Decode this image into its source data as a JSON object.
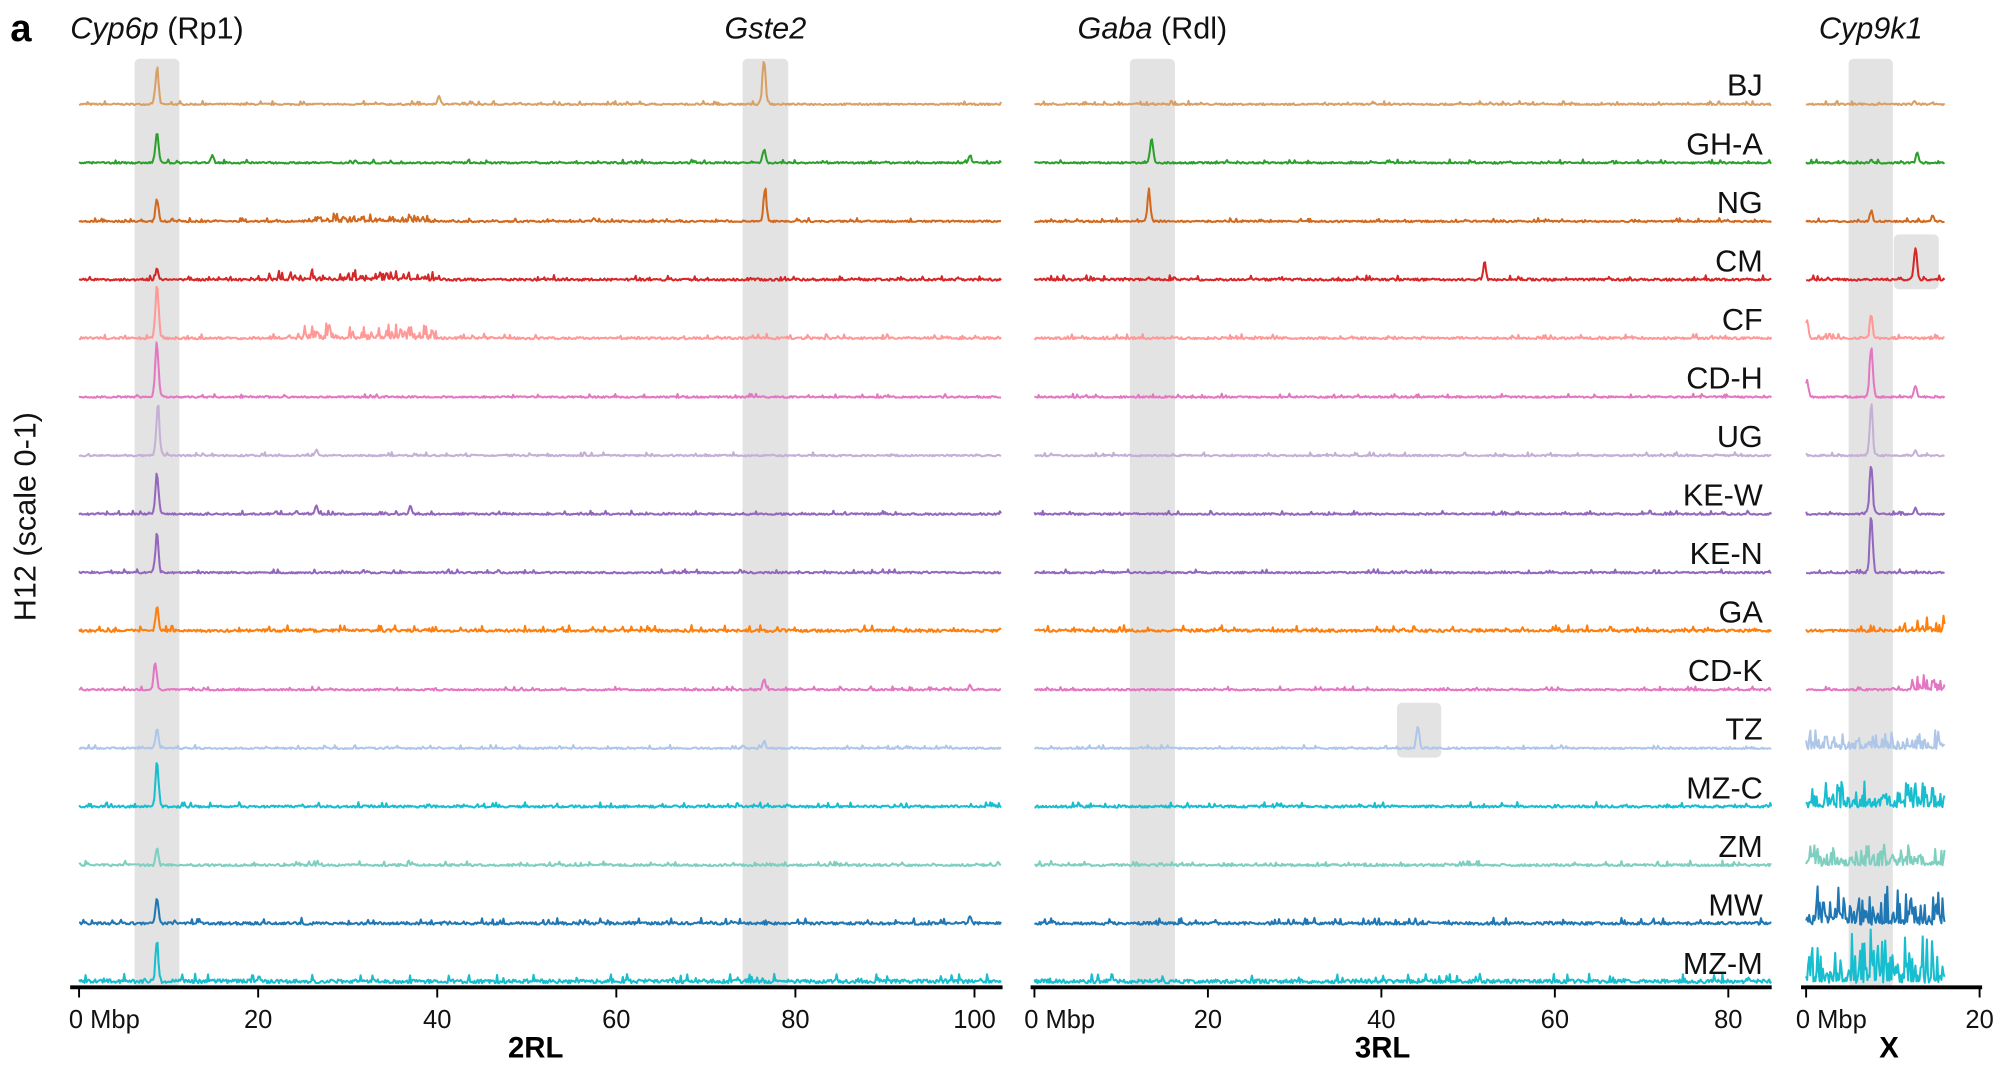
{
  "chart_data": {
    "type": "line",
    "panel_letter": "a",
    "ylabel": "H12 (scale 0-1)",
    "ylim": [
      0,
      1
    ],
    "chromosomes": [
      {
        "name": "2RL",
        "xlim": [
          0,
          103
        ],
        "ticks": [
          0,
          20,
          40,
          60,
          80,
          100
        ],
        "tick_labels": [
          "0 Mbp",
          "20",
          "40",
          "60",
          "80",
          "100"
        ]
      },
      {
        "name": "3RL",
        "xlim": [
          0,
          85
        ],
        "ticks": [
          0,
          20,
          40,
          60,
          80
        ],
        "tick_labels": [
          "0 Mbp",
          "20",
          "40",
          "60",
          "80"
        ]
      },
      {
        "name": "X",
        "xlim": [
          0,
          16
        ],
        "ticks": [
          0,
          20
        ],
        "tick_labels": [
          "0 Mbp",
          "20"
        ]
      }
    ],
    "loci": [
      {
        "chrom": "2RL",
        "start": 6.2,
        "end": 11.2,
        "label_italic": "Cyp6p",
        "label_extra": " (Rp1)"
      },
      {
        "chrom": "2RL",
        "start": 74.1,
        "end": 79.2,
        "label_italic": "Gste2",
        "label_extra": ""
      },
      {
        "chrom": "3RL",
        "start": 11.0,
        "end": 16.2,
        "label_italic": "Gaba",
        "label_extra": " (Rdl)"
      },
      {
        "chrom": "X",
        "start": 4.9,
        "end": 10.0,
        "label_italic": "Cyp9k1",
        "label_extra": ""
      }
    ],
    "highlights": [
      {
        "population": "CM",
        "chrom": "X",
        "start": 10.1,
        "end": 15.3
      },
      {
        "population": "TZ",
        "chrom": "3RL",
        "start": 41.8,
        "end": 46.9
      }
    ],
    "series": [
      {
        "name": "BJ",
        "color": "#d8a064",
        "noise": 0.03,
        "peaks": {
          "2RL": [
            [
              8.7,
              0.6
            ],
            [
              40.2,
              0.15
            ],
            [
              76.5,
              0.75
            ]
          ],
          "3RL": [],
          "X": [
            [
              12.5,
              0.08
            ]
          ]
        },
        "bumps": {}
      },
      {
        "name": "GH-A",
        "color": "#2ca02c",
        "noise": 0.03,
        "peaks": {
          "2RL": [
            [
              8.7,
              0.55
            ],
            [
              14.9,
              0.15
            ],
            [
              76.5,
              0.25
            ],
            [
              99.5,
              0.15
            ]
          ],
          "3RL": [
            [
              13.5,
              0.45
            ]
          ],
          "X": [
            [
              12.8,
              0.18
            ],
            [
              7.5,
              0.08
            ]
          ]
        },
        "bumps": {}
      },
      {
        "name": "NG",
        "color": "#d2691e",
        "noise": 0.03,
        "peaks": {
          "2RL": [
            [
              8.7,
              0.4
            ],
            [
              76.6,
              0.55
            ],
            [
              57.5,
              0.08
            ]
          ],
          "3RL": [
            [
              13.2,
              0.5
            ]
          ],
          "X": [
            [
              7.5,
              0.2
            ],
            [
              14.6,
              0.12
            ]
          ]
        },
        "bumps": {
          "2RL": [
            [
              25,
              40,
              0.12
            ]
          ]
        }
      },
      {
        "name": "CM",
        "color": "#d62728",
        "noise": 0.04,
        "peaks": {
          "2RL": [
            [
              8.7,
              0.2
            ]
          ],
          "3RL": [
            [
              51.9,
              0.3
            ]
          ],
          "X": [
            [
              12.6,
              0.55
            ]
          ]
        },
        "bumps": {
          "2RL": [
            [
              20,
              40,
              0.15
            ]
          ]
        }
      },
      {
        "name": "CF",
        "color": "#ff9896",
        "noise": 0.04,
        "peaks": {
          "2RL": [
            [
              8.7,
              0.85
            ]
          ],
          "3RL": [],
          "X": [
            [
              7.5,
              0.4
            ],
            [
              0.1,
              0.3
            ]
          ]
        },
        "bumps": {
          "2RL": [
            [
              25,
              40,
              0.2
            ]
          ]
        }
      },
      {
        "name": "CD-H",
        "color": "#e377c2",
        "noise": 0.03,
        "peaks": {
          "2RL": [
            [
              8.7,
              0.9
            ]
          ],
          "3RL": [],
          "X": [
            [
              7.5,
              0.85
            ],
            [
              12.6,
              0.2
            ],
            [
              0.1,
              0.3
            ]
          ]
        },
        "bumps": {}
      },
      {
        "name": "UG",
        "color": "#c5b0d5",
        "noise": 0.03,
        "peaks": {
          "2RL": [
            [
              8.8,
              0.85
            ],
            [
              26.5,
              0.12
            ]
          ],
          "3RL": [],
          "X": [
            [
              7.5,
              0.85
            ],
            [
              12.6,
              0.12
            ]
          ]
        },
        "bumps": {}
      },
      {
        "name": "KE-W",
        "color": "#9467bd",
        "noise": 0.03,
        "peaks": {
          "2RL": [
            [
              8.7,
              0.65
            ],
            [
              26.5,
              0.15
            ],
            [
              37,
              0.15
            ]
          ],
          "3RL": [],
          "X": [
            [
              7.5,
              0.85
            ],
            [
              12.6,
              0.12
            ]
          ]
        },
        "bumps": {}
      },
      {
        "name": "KE-N",
        "color": "#9467bd",
        "noise": 0.03,
        "peaks": {
          "2RL": [
            [
              8.7,
              0.65
            ]
          ],
          "3RL": [],
          "X": [
            [
              7.5,
              0.9
            ]
          ]
        },
        "bumps": {}
      },
      {
        "name": "GA",
        "color": "#ff7f0e",
        "noise": 0.05,
        "peaks": {
          "2RL": [
            [
              8.7,
              0.4
            ]
          ],
          "3RL": [],
          "X": []
        },
        "bumps": {
          "X": [
            [
              11,
              16,
              0.25
            ]
          ]
        }
      },
      {
        "name": "CD-K",
        "color": "#e377c2",
        "noise": 0.03,
        "peaks": {
          "2RL": [
            [
              8.5,
              0.45
            ],
            [
              76.5,
              0.2
            ],
            [
              99.5,
              0.1
            ]
          ],
          "3RL": [],
          "X": []
        },
        "bumps": {
          "X": [
            [
              12,
              16,
              0.2
            ]
          ]
        }
      },
      {
        "name": "TZ",
        "color": "#aec7e8",
        "noise": 0.03,
        "peaks": {
          "2RL": [
            [
              8.7,
              0.35
            ],
            [
              76.5,
              0.15
            ]
          ],
          "3RL": [
            [
              44.2,
              0.4
            ]
          ],
          "X": []
        },
        "bumps": {
          "X": [
            [
              0,
              16,
              0.25
            ]
          ]
        }
      },
      {
        "name": "MZ-C",
        "color": "#17becf",
        "noise": 0.04,
        "peaks": {
          "2RL": [
            [
              8.7,
              0.75
            ]
          ],
          "3RL": [],
          "X": []
        },
        "bumps": {
          "X": [
            [
              0,
              16,
              0.35
            ]
          ]
        }
      },
      {
        "name": "ZM",
        "color": "#7fcfc0",
        "noise": 0.04,
        "peaks": {
          "2RL": [
            [
              8.7,
              0.3
            ]
          ],
          "3RL": [],
          "X": []
        },
        "bumps": {
          "X": [
            [
              0,
              16,
              0.3
            ]
          ]
        }
      },
      {
        "name": "MW",
        "color": "#1f77b4",
        "noise": 0.05,
        "peaks": {
          "2RL": [
            [
              8.7,
              0.45
            ],
            [
              99.5,
              0.15
            ]
          ],
          "3RL": [],
          "X": []
        },
        "bumps": {
          "X": [
            [
              0,
              16,
              0.5
            ]
          ]
        }
      },
      {
        "name": "MZ-M",
        "color": "#17becf",
        "noise": 0.07,
        "peaks": {
          "2RL": [
            [
              8.7,
              0.65
            ]
          ],
          "3RL": [],
          "X": []
        },
        "bumps": {
          "X": [
            [
              0,
              16,
              0.7
            ]
          ]
        }
      }
    ]
  }
}
